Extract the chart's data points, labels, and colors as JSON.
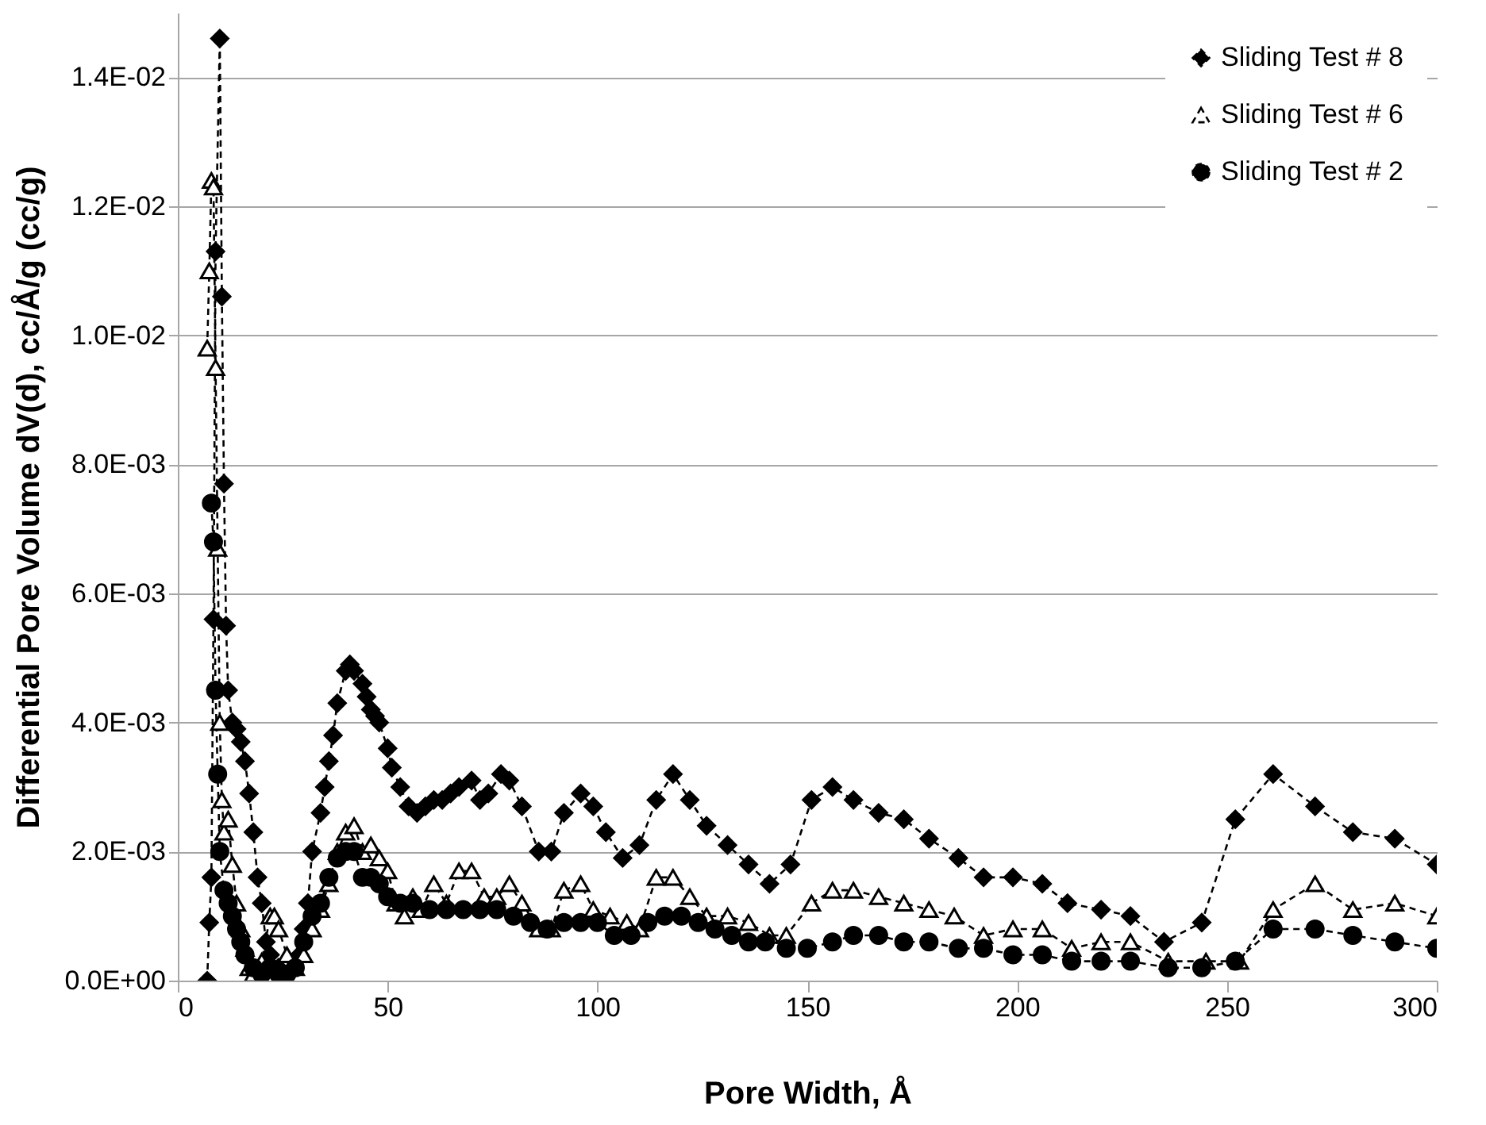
{
  "chart_data": {
    "type": "line",
    "xlabel": "Pore Width, Å",
    "ylabel": "Differential Pore Volume dV(d), cc/Å/g (cc/g)",
    "xlim": [
      0,
      300
    ],
    "xticks": [
      0,
      50,
      100,
      150,
      200,
      250,
      300
    ],
    "ylim": [
      0,
      0.015
    ],
    "yticks": [
      {
        "value": 0,
        "label": "0.0E+00"
      },
      {
        "value": 0.002,
        "label": "2.0E-03"
      },
      {
        "value": 0.004,
        "label": "4.0E-03"
      },
      {
        "value": 0.006,
        "label": "6.0E-03"
      },
      {
        "value": 0.008,
        "label": "8.0E-03"
      },
      {
        "value": 0.01,
        "label": "1.0E-02"
      },
      {
        "value": 0.012,
        "label": "1.2E-02"
      },
      {
        "value": 0.014,
        "label": "1.4E-02"
      }
    ],
    "grid": "y",
    "legend": "top right",
    "line_style": "dashed",
    "series": [
      {
        "name": "Sliding Test # 8",
        "color": "#000000",
        "marker": "diamond",
        "x": [
          7,
          7.5,
          8,
          8.5,
          9,
          10,
          10.5,
          11,
          11.5,
          12,
          13,
          14,
          15,
          16,
          17,
          18,
          19,
          20,
          21,
          22,
          24,
          26,
          28,
          29,
          30,
          31,
          32,
          34,
          35,
          36,
          37,
          38,
          40,
          41,
          42,
          44,
          45,
          46,
          47,
          48,
          50,
          51,
          53,
          55,
          57,
          59,
          61,
          63,
          65,
          67,
          70,
          72,
          74,
          77,
          79,
          82,
          86,
          89,
          92,
          96,
          99,
          102,
          106,
          110,
          114,
          118,
          122,
          126,
          131,
          136,
          141,
          146,
          151,
          156,
          161,
          167,
          173,
          179,
          186,
          192,
          199,
          206,
          212,
          220,
          227,
          235,
          244,
          252,
          261,
          271,
          280,
          290,
          300
        ],
        "values": [
          0,
          0.0009,
          0.0016,
          0.0056,
          0.0113,
          0.0146,
          0.0106,
          0.0077,
          0.0055,
          0.0045,
          0.004,
          0.0039,
          0.0037,
          0.0034,
          0.0029,
          0.0023,
          0.0016,
          0.0012,
          0.0006,
          0.0004,
          0.0002,
          0.0001,
          0.0003,
          0.0004,
          0.0008,
          0.0012,
          0.002,
          0.0026,
          0.003,
          0.0034,
          0.0038,
          0.0043,
          0.0048,
          0.0049,
          0.0048,
          0.0046,
          0.0044,
          0.0042,
          0.0041,
          0.004,
          0.0036,
          0.0033,
          0.003,
          0.0027,
          0.0026,
          0.0027,
          0.0028,
          0.0028,
          0.0029,
          0.003,
          0.0031,
          0.0028,
          0.0029,
          0.0032,
          0.0031,
          0.0027,
          0.002,
          0.002,
          0.0026,
          0.0029,
          0.0027,
          0.0023,
          0.0019,
          0.0021,
          0.0028,
          0.0032,
          0.0028,
          0.0024,
          0.0021,
          0.0018,
          0.0015,
          0.0018,
          0.0028,
          0.003,
          0.0028,
          0.0026,
          0.0025,
          0.0022,
          0.0019,
          0.0016,
          0.0016,
          0.0015,
          0.0012,
          0.0011,
          0.001,
          0.0006,
          0.0009,
          0.0025,
          0.0032,
          0.0027,
          0.0023,
          0.0022,
          0.0018
        ]
      },
      {
        "name": "Sliding Test # 6",
        "color": "#000000",
        "marker": "triangle",
        "x": [
          7,
          7.5,
          8,
          8.5,
          9,
          9.5,
          10,
          10.5,
          11,
          12,
          13,
          14,
          15,
          16,
          17,
          18,
          20,
          22,
          23,
          24,
          26,
          28,
          30,
          32,
          34,
          36,
          38,
          40,
          42,
          44,
          46,
          48,
          50,
          52,
          54,
          56,
          58,
          61,
          64,
          67,
          70,
          73,
          76,
          79,
          82,
          86,
          89,
          92,
          96,
          99,
          103,
          107,
          110,
          114,
          118,
          122,
          126,
          131,
          136,
          141,
          145,
          151,
          156,
          161,
          167,
          173,
          179,
          185,
          192,
          199,
          206,
          213,
          220,
          227,
          236,
          245,
          253,
          261,
          271,
          280,
          290,
          300
        ],
        "values": [
          0.0098,
          0.011,
          0.0124,
          0.0123,
          0.0095,
          0.0067,
          0.004,
          0.0028,
          0.0023,
          0.0025,
          0.0018,
          0.0012,
          0.0008,
          0.0005,
          0.0002,
          0.0001,
          0.0003,
          0.001,
          0.001,
          0.0008,
          0.0004,
          0.0002,
          0.0004,
          0.0008,
          0.0011,
          0.0015,
          0.002,
          0.0023,
          0.0024,
          0.002,
          0.0021,
          0.0019,
          0.0017,
          0.0012,
          0.001,
          0.0013,
          0.0011,
          0.0015,
          0.0012,
          0.0017,
          0.0017,
          0.0013,
          0.0013,
          0.0015,
          0.0012,
          0.0008,
          0.0008,
          0.0014,
          0.0015,
          0.0011,
          0.001,
          0.0009,
          0.0008,
          0.0016,
          0.0016,
          0.0013,
          0.001,
          0.001,
          0.0009,
          0.0007,
          0.0007,
          0.0012,
          0.0014,
          0.0014,
          0.0013,
          0.0012,
          0.0011,
          0.001,
          0.0007,
          0.0008,
          0.0008,
          0.0005,
          0.0006,
          0.0006,
          0.0003,
          0.0003,
          0.0003,
          0.0011,
          0.0015,
          0.0011,
          0.0012,
          0.001
        ]
      },
      {
        "name": "Sliding Test # 2",
        "color": "#000000",
        "marker": "circle",
        "x": [
          8,
          8.5,
          9,
          9.5,
          10,
          11,
          12,
          13,
          14,
          15,
          16,
          18,
          20,
          22,
          24,
          26,
          28,
          30,
          32,
          34,
          36,
          38,
          40,
          42,
          44,
          46,
          48,
          50,
          53,
          56,
          60,
          64,
          68,
          72,
          76,
          80,
          84,
          88,
          92,
          96,
          100,
          104,
          108,
          112,
          116,
          120,
          124,
          128,
          132,
          136,
          140,
          145,
          150,
          156,
          161,
          167,
          173,
          179,
          186,
          192,
          199,
          206,
          213,
          220,
          227,
          236,
          244,
          252,
          261,
          271,
          280,
          290,
          300
        ],
        "values": [
          0.0074,
          0.0068,
          0.0045,
          0.0032,
          0.002,
          0.0014,
          0.0012,
          0.001,
          0.0008,
          0.0006,
          0.0004,
          0.0002,
          0.0001,
          0.0002,
          0.0001,
          0.0001,
          0.0002,
          0.0006,
          0.001,
          0.0012,
          0.0016,
          0.0019,
          0.002,
          0.002,
          0.0016,
          0.0016,
          0.0015,
          0.0013,
          0.0012,
          0.0012,
          0.0011,
          0.0011,
          0.0011,
          0.0011,
          0.0011,
          0.001,
          0.0009,
          0.0008,
          0.0009,
          0.0009,
          0.0009,
          0.0007,
          0.0007,
          0.0009,
          0.001,
          0.001,
          0.0009,
          0.0008,
          0.0007,
          0.0006,
          0.0006,
          0.0005,
          0.0005,
          0.0006,
          0.0007,
          0.0007,
          0.0006,
          0.0006,
          0.0005,
          0.0005,
          0.0004,
          0.0004,
          0.0003,
          0.0003,
          0.0003,
          0.0002,
          0.0002,
          0.0003,
          0.0008,
          0.0008,
          0.0007,
          0.0006,
          0.0005
        ]
      }
    ]
  }
}
